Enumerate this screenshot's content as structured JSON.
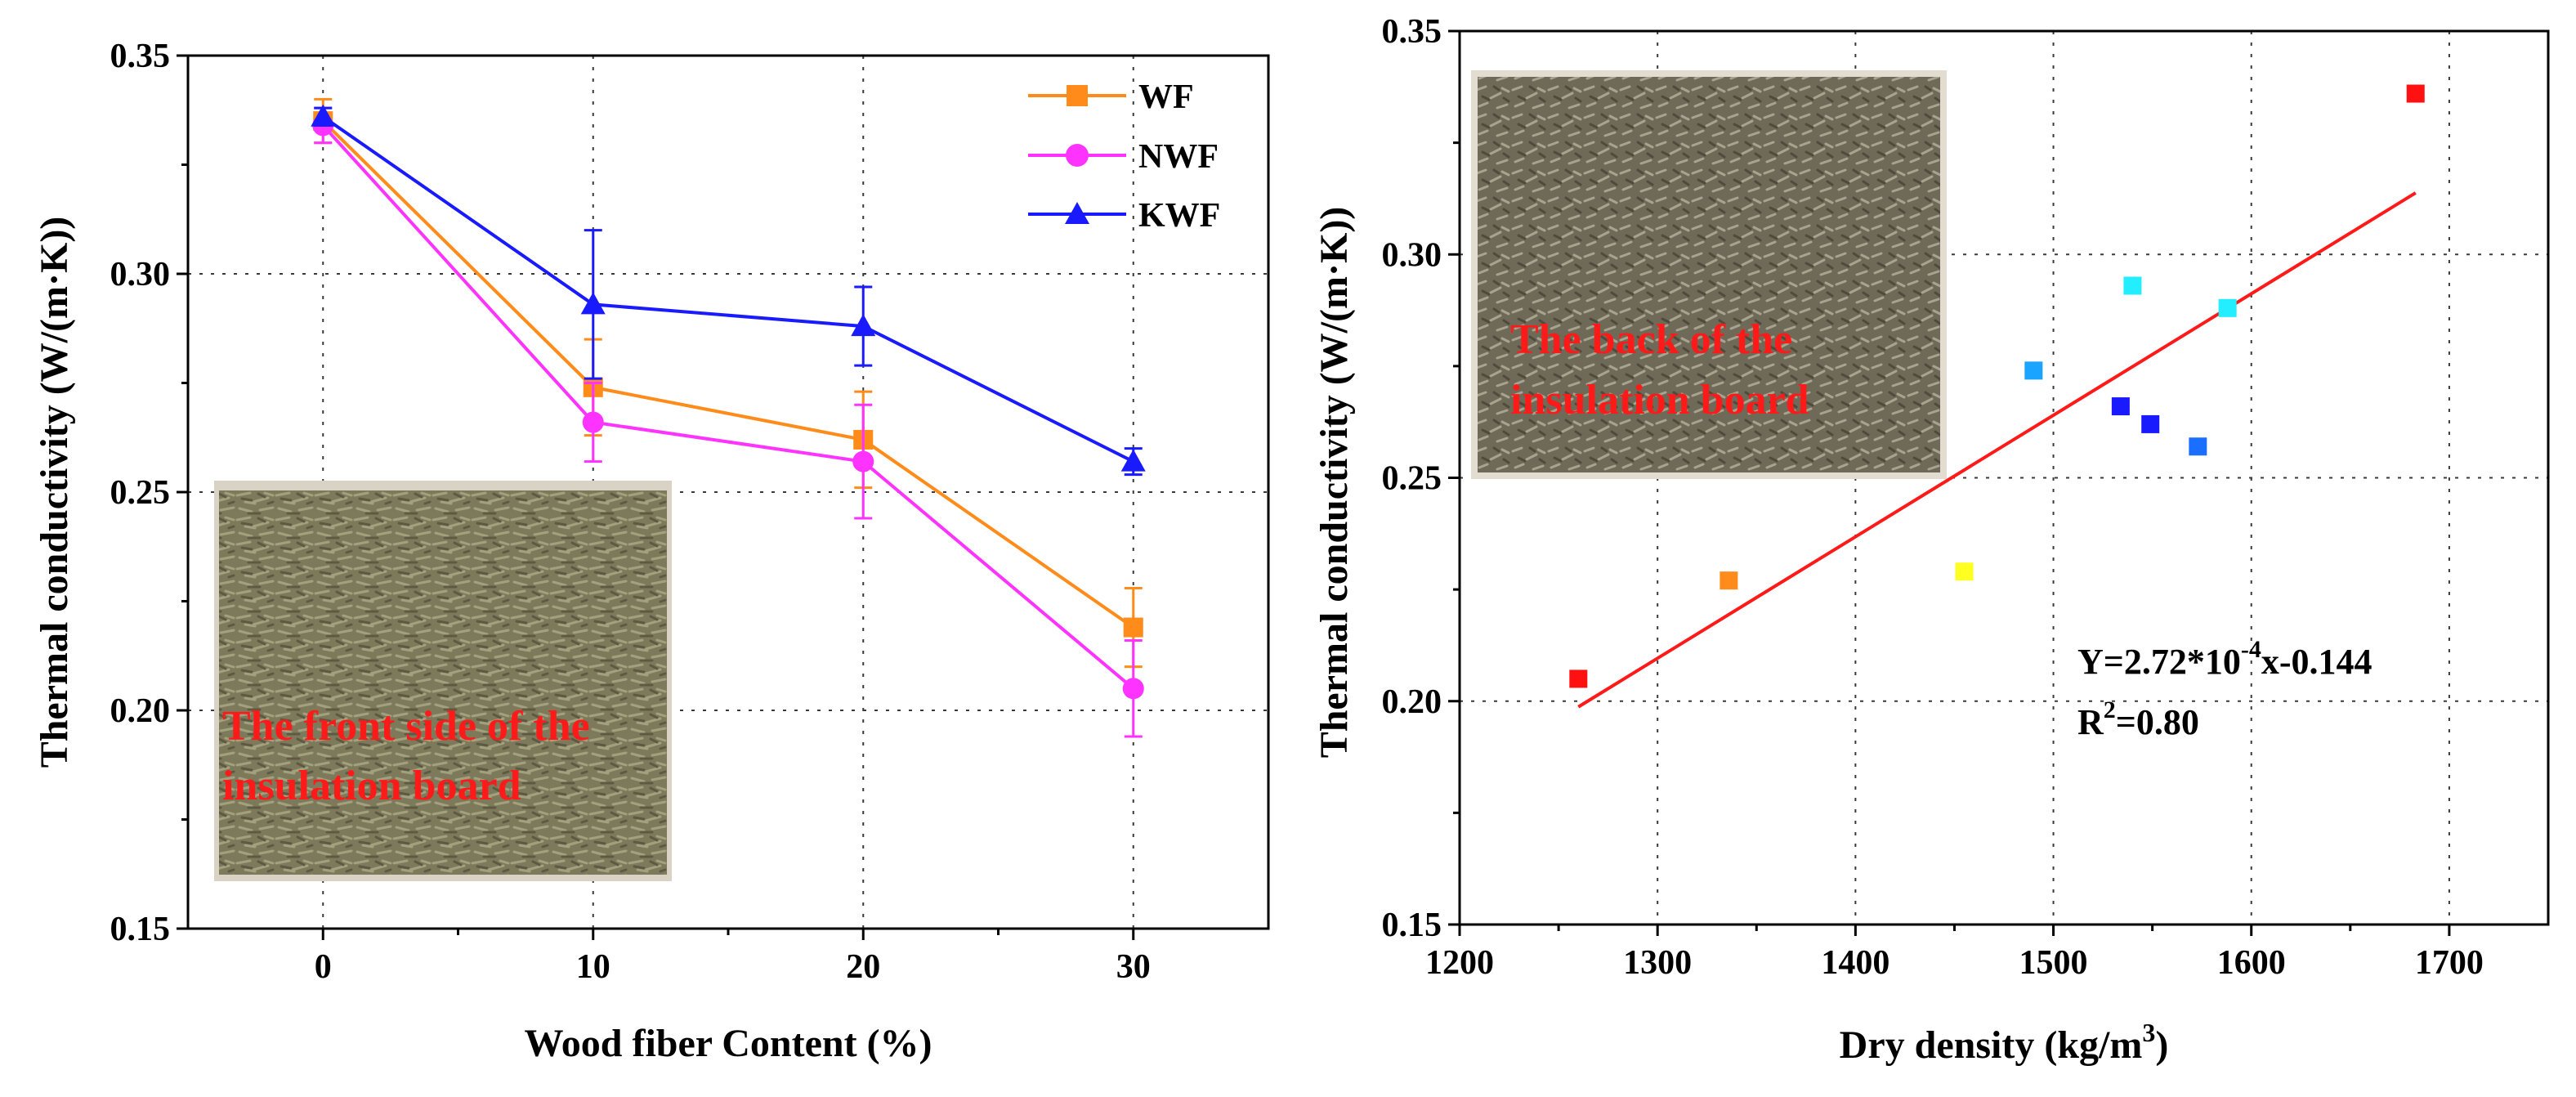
{
  "colors": {
    "WF": "#ff8c1a",
    "NWF": "#ff33ff",
    "KWF": "#1a1aff",
    "fit_line": "#ff1a1a",
    "inset_label": "#ff1a1a"
  },
  "chart_data": [
    {
      "type": "line",
      "id": "left",
      "xlabel": "Wood fiber Content (%)",
      "ylabel": "Thermal conductivity (W/(m·K))",
      "xlim": [
        -5,
        35
      ],
      "ylim": [
        0.15,
        0.35
      ],
      "grid": true,
      "legend_position": "top-right",
      "x_ticks": [
        0,
        10,
        20,
        30
      ],
      "y_ticks": [
        0.15,
        0.2,
        0.25,
        0.3,
        0.35
      ],
      "x_tick_labels": [
        "0",
        "10",
        "20",
        "30"
      ],
      "y_tick_labels": [
        "0.15",
        "0.20",
        "0.25",
        "0.30",
        "0.35"
      ],
      "x": [
        0,
        10,
        20,
        30
      ],
      "series": [
        {
          "name": "WF",
          "marker": "square",
          "values": [
            0.335,
            0.274,
            0.262,
            0.219
          ],
          "errors": [
            0.005,
            0.011,
            0.011,
            0.009
          ]
        },
        {
          "name": "NWF",
          "marker": "circle",
          "values": [
            0.334,
            0.266,
            0.257,
            0.205
          ],
          "errors": [
            0.004,
            0.009,
            0.013,
            0.011
          ]
        },
        {
          "name": "KWF",
          "marker": "triangle",
          "values": [
            0.336,
            0.293,
            0.288,
            0.257
          ],
          "errors": [
            0.002,
            0.017,
            0.009,
            0.003
          ]
        }
      ],
      "inset_label": [
        "The front side of the",
        "insulation board"
      ]
    },
    {
      "type": "scatter",
      "id": "right",
      "xlabel": "Dry density (kg/m",
      "xlabel_sup": "3",
      "xlabel_end": ")",
      "ylabel": "Thermal conductivity (W/(m·K))",
      "xlim": [
        1200,
        1750
      ],
      "ylim": [
        0.15,
        0.35
      ],
      "grid": true,
      "x_ticks": [
        1200,
        1300,
        1400,
        1500,
        1600,
        1700
      ],
      "y_ticks": [
        0.15,
        0.2,
        0.25,
        0.3,
        0.35
      ],
      "x_tick_labels": [
        "1200",
        "1300",
        "1400",
        "1500",
        "1600",
        "1700"
      ],
      "y_tick_labels": [
        "0.15",
        "0.20",
        "0.25",
        "0.30",
        "0.35"
      ],
      "points": [
        {
          "x": 1683,
          "y": 0.336,
          "color": "#ff1111"
        },
        {
          "x": 1260,
          "y": 0.205,
          "color": "#ff1111"
        },
        {
          "x": 1336,
          "y": 0.227,
          "color": "#ff8c1a"
        },
        {
          "x": 1455,
          "y": 0.229,
          "color": "#ffff22"
        },
        {
          "x": 1540,
          "y": 0.293,
          "color": "#22eeff"
        },
        {
          "x": 1588,
          "y": 0.288,
          "color": "#22eeff"
        },
        {
          "x": 1490,
          "y": 0.274,
          "color": "#1aa3ff"
        },
        {
          "x": 1534,
          "y": 0.266,
          "color": "#1a1aff"
        },
        {
          "x": 1549,
          "y": 0.262,
          "color": "#1a1aff"
        },
        {
          "x": 1573,
          "y": 0.257,
          "color": "#1a6fff"
        }
      ],
      "fit": {
        "slope": 0.000272,
        "intercept": -0.144,
        "x_range": [
          1260,
          1683
        ]
      },
      "equation": {
        "prefix": "Y=2.72*10",
        "exponent": "-4",
        "suffix": "x-0.144"
      },
      "r2": {
        "prefix": "R",
        "exponent": "2",
        "suffix": "=0.80"
      },
      "inset_label": [
        "The back of the",
        "insulation board"
      ]
    }
  ]
}
